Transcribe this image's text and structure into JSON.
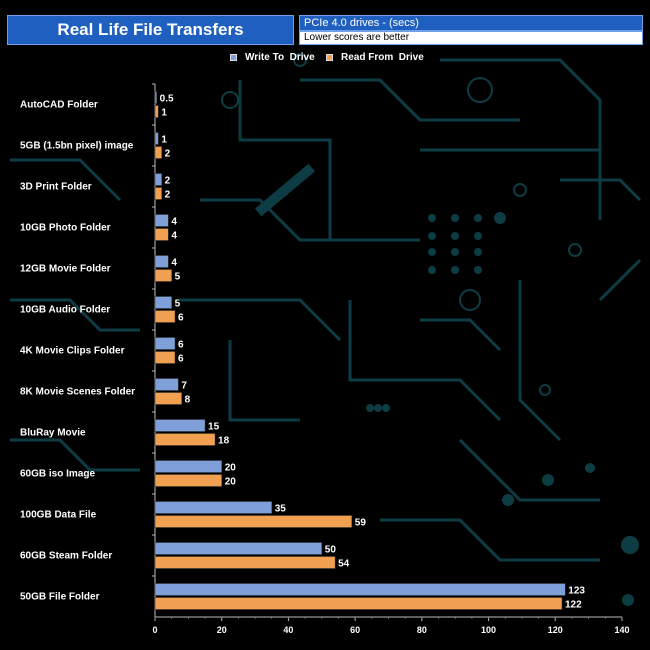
{
  "header": {
    "title": "Real Life File Transfers",
    "subtitle": "PCIe 4.0 drives - (secs)",
    "note": "Lower scores are better"
  },
  "colors": {
    "write": "#7f9fd9",
    "read": "#f0a050",
    "title_bg": "#1f5fbf",
    "circuit": "#0e3c44"
  },
  "chart_data": {
    "type": "bar",
    "orientation": "horizontal",
    "title": "Real Life File Transfers",
    "subtitle": "PCIe 4.0 drives - (secs)",
    "note": "Lower scores are better",
    "categories": [
      "AutoCAD Folder",
      "5GB (1.5bn pixel) image",
      "3D Print Folder",
      "10GB Photo Folder",
      "12GB Movie Folder",
      "10GB Audio Folder",
      "4K Movie Clips Folder",
      "8K Movie Scenes Folder",
      "BluRay Movie",
      "60GB iso Image",
      "100GB Data File",
      "60GB Steam Folder",
      "50GB File Folder"
    ],
    "series": [
      {
        "name": "Write To  Drive",
        "values": [
          0.5,
          1,
          2,
          4,
          4,
          5,
          6,
          7,
          15,
          20,
          35,
          50,
          123
        ]
      },
      {
        "name": "Read From  Drive",
        "values": [
          1,
          2,
          2,
          4,
          5,
          6,
          6,
          8,
          18,
          20,
          59,
          54,
          122
        ]
      }
    ],
    "xlim": [
      0,
      140
    ],
    "xticks": [
      "0",
      "20",
      "40",
      "60",
      "80",
      "100",
      "120",
      "140"
    ],
    "legend_position": "top-center",
    "grid": false
  }
}
